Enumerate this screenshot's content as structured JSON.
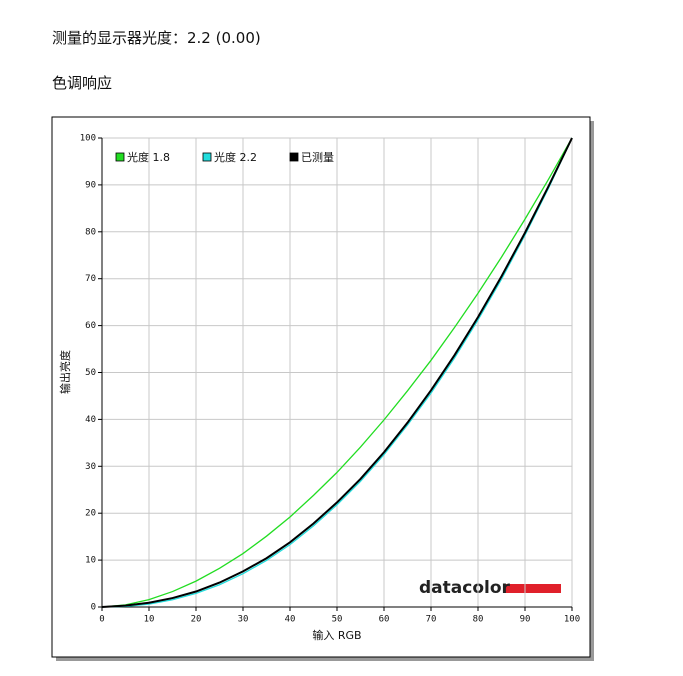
{
  "header": {
    "title": "测量的显示器光度：2.2 (0.00)",
    "section": "色调响应"
  },
  "chart_data": {
    "type": "line",
    "x_label": "输入 RGB",
    "y_label": "输出亮度",
    "logo": "datacolor",
    "x": [
      0,
      5,
      10,
      15,
      20,
      25,
      30,
      35,
      40,
      45,
      50,
      55,
      60,
      65,
      70,
      75,
      80,
      85,
      90,
      95,
      100
    ],
    "series": [
      {
        "name": "光度 1.8",
        "color": "#22dd22",
        "values": [
          0,
          0.46,
          1.58,
          3.29,
          5.52,
          8.25,
          11.4,
          15.1,
          19.2,
          23.8,
          28.7,
          34.1,
          39.9,
          46.1,
          52.6,
          59.6,
          66.9,
          74.6,
          82.7,
          91.2,
          100
        ]
      },
      {
        "name": "光度 2.2",
        "color": "#22dddd",
        "values": [
          0,
          0.14,
          0.63,
          1.54,
          2.9,
          4.74,
          7.1,
          9.93,
          13.3,
          17.3,
          21.8,
          26.8,
          32.5,
          38.8,
          45.6,
          53.1,
          61.2,
          69.9,
          79.3,
          89.3,
          100
        ]
      },
      {
        "name": "已测量",
        "color": "#000000",
        "values": [
          0,
          0.3,
          0.9,
          1.9,
          3.3,
          5.2,
          7.6,
          10.4,
          13.8,
          17.8,
          22.3,
          27.3,
          33.0,
          39.3,
          46.2,
          53.7,
          61.8,
          70.5,
          79.8,
          89.7,
          100
        ]
      }
    ],
    "xlim": [
      0,
      100
    ],
    "ylim": [
      0,
      100
    ],
    "xticks": [
      0,
      10,
      20,
      30,
      40,
      50,
      60,
      70,
      80,
      90,
      100
    ],
    "yticks": [
      0,
      10,
      20,
      30,
      40,
      50,
      60,
      70,
      80,
      90,
      100
    ],
    "grid": true,
    "legend": "top-left"
  }
}
